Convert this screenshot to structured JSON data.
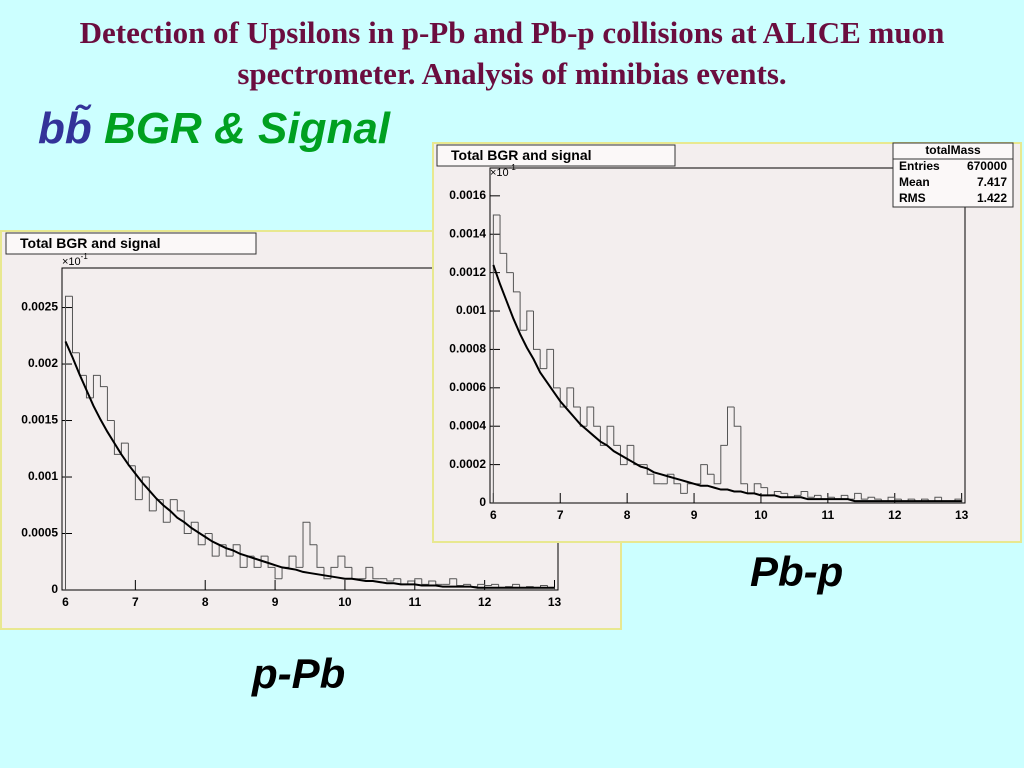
{
  "slide": {
    "title": "Detection of Upsilons in p-Pb and Pb-p collisions at ALICE muon spectrometer. Analysis of minibias events.",
    "heading_symbol": "bb̃",
    "heading_text": "BGR & Signal"
  },
  "chart_data": [
    {
      "type": "histogram",
      "title": "Total BGR and signal",
      "label": "p-Pb",
      "y_multiplier": {
        "base": "×10",
        "exp": "-1"
      },
      "color": "#555555",
      "fit_color": "#000000",
      "xlim": [
        5.95,
        13.05
      ],
      "xticks": [
        6,
        7,
        8,
        9,
        10,
        11,
        12,
        13
      ],
      "ylim": [
        0,
        0.00285
      ],
      "yticks": [
        0,
        0.0005,
        0.001,
        0.0015,
        0.002,
        0.0025
      ],
      "bins": [
        6,
        6.1,
        6.2,
        6.3,
        6.4,
        6.5,
        6.6,
        6.7,
        6.8,
        6.9,
        7,
        7.1,
        7.2,
        7.3,
        7.4,
        7.5,
        7.6,
        7.7,
        7.8,
        7.9,
        8,
        8.1,
        8.2,
        8.3,
        8.4,
        8.5,
        8.6,
        8.7,
        8.8,
        8.9,
        9,
        9.1,
        9.2,
        9.3,
        9.4,
        9.5,
        9.6,
        9.7,
        9.8,
        9.9,
        10,
        10.1,
        10.2,
        10.3,
        10.4,
        10.5,
        10.6,
        10.7,
        10.8,
        10.9,
        11,
        11.1,
        11.2,
        11.3,
        11.4,
        11.5,
        11.6,
        11.7,
        11.8,
        11.9,
        12,
        12.1,
        12.2,
        12.3,
        12.4,
        12.5,
        12.6,
        12.7,
        12.8,
        12.9,
        13
      ],
      "values": [
        0.0026,
        0.0021,
        0.0019,
        0.0017,
        0.0019,
        0.0018,
        0.0015,
        0.0012,
        0.0013,
        0.0011,
        0.0008,
        0.001,
        0.0007,
        0.0008,
        0.0006,
        0.0008,
        0.0007,
        0.0005,
        0.0006,
        0.0004,
        0.0005,
        0.0003,
        0.0004,
        0.0003,
        0.0004,
        0.0002,
        0.0003,
        0.0002,
        0.0003,
        0.0002,
        0.0001,
        0.0002,
        0.0003,
        0.0002,
        0.0006,
        0.0004,
        0.0002,
        0.0001,
        0.0002,
        0.0003,
        0.0002,
        0.0001,
        0.0001,
        0.0002,
        0.0001,
        0.0001,
        8e-05,
        0.0001,
        5e-05,
        8e-05,
        0.0001,
        5e-05,
        8e-05,
        5e-05,
        5e-05,
        0.0001,
        4e-05,
        5e-05,
        3e-05,
        5e-05,
        4e-05,
        5e-05,
        2e-05,
        3e-05,
        5e-05,
        2e-05,
        3e-05,
        2e-05,
        4e-05,
        2e-05
      ],
      "fit_values": [
        0.0022,
        0.00206,
        0.00191,
        0.00177,
        0.00163,
        0.00151,
        0.0014,
        0.0013,
        0.0012,
        0.00111,
        0.00103,
        0.00095,
        0.00088,
        0.00081,
        0.00075,
        0.0007,
        0.00064,
        0.0006,
        0.00055,
        0.00051,
        0.00047,
        0.00043,
        0.0004,
        0.00037,
        0.00035,
        0.00032,
        0.0003,
        0.00028,
        0.00026,
        0.00024,
        0.00022,
        0.0002,
        0.00019,
        0.00018,
        0.00016,
        0.00015,
        0.00014,
        0.00013,
        0.00012,
        0.00011,
        0.0001,
        0.0001,
        9e-05,
        8e-05,
        8e-05,
        7e-05,
        6e-05,
        6e-05,
        5e-05,
        5e-05,
        5e-05,
        4e-05,
        4e-05,
        4e-05,
        3e-05,
        3e-05,
        3e-05,
        3e-05,
        3e-05,
        2e-05,
        2e-05,
        2e-05,
        2e-05,
        2e-05,
        2e-05,
        2e-05,
        2e-05,
        2e-05,
        2e-05,
        2e-05,
        2e-05
      ]
    },
    {
      "type": "histogram",
      "title": "Total BGR and signal",
      "label": "Pb-p",
      "y_multiplier": {
        "base": "×10",
        "exp": "-1"
      },
      "color": "#555555",
      "fit_color": "#000000",
      "stats": {
        "title": "totalMass",
        "rows": [
          [
            "Entries",
            670000
          ],
          [
            "Mean",
            7.417
          ],
          [
            "RMS",
            1.422
          ]
        ]
      },
      "xlim": [
        5.95,
        13.05
      ],
      "xticks": [
        6,
        7,
        8,
        9,
        10,
        11,
        12,
        13
      ],
      "ylim": [
        0,
        0.001745
      ],
      "yticks": [
        0,
        0.0002,
        0.0004,
        0.0006,
        0.0008,
        0.001,
        0.0012,
        0.0014,
        0.0016
      ],
      "bins": [
        6,
        6.1,
        6.2,
        6.3,
        6.4,
        6.5,
        6.6,
        6.7,
        6.8,
        6.9,
        7,
        7.1,
        7.2,
        7.3,
        7.4,
        7.5,
        7.6,
        7.7,
        7.8,
        7.9,
        8,
        8.1,
        8.2,
        8.3,
        8.4,
        8.5,
        8.6,
        8.7,
        8.8,
        8.9,
        9,
        9.1,
        9.2,
        9.3,
        9.4,
        9.5,
        9.6,
        9.7,
        9.8,
        9.9,
        10,
        10.1,
        10.2,
        10.3,
        10.4,
        10.5,
        10.6,
        10.7,
        10.8,
        10.9,
        11,
        11.1,
        11.2,
        11.3,
        11.4,
        11.5,
        11.6,
        11.7,
        11.8,
        11.9,
        12,
        12.1,
        12.2,
        12.3,
        12.4,
        12.5,
        12.6,
        12.7,
        12.8,
        12.9,
        13
      ],
      "values": [
        0.0015,
        0.0013,
        0.0012,
        0.0011,
        0.0009,
        0.001,
        0.0008,
        0.0007,
        0.0008,
        0.0006,
        0.0005,
        0.0006,
        0.0005,
        0.0004,
        0.0005,
        0.0004,
        0.0003,
        0.0004,
        0.0003,
        0.0002,
        0.0003,
        0.0002,
        0.0002,
        0.00015,
        0.0001,
        0.0001,
        0.00015,
        0.0001,
        5e-05,
        0.0001,
        0.0001,
        0.0002,
        0.00015,
        0.0001,
        0.0003,
        0.0005,
        0.0004,
        0.0001,
        5e-05,
        0.0001,
        8e-05,
        4e-05,
        6e-05,
        5e-05,
        3e-05,
        4e-05,
        6e-05,
        3e-05,
        4e-05,
        2e-05,
        3e-05,
        2e-05,
        4e-05,
        2e-05,
        5e-05,
        2e-05,
        3e-05,
        2e-05,
        1e-05,
        3e-05,
        2e-05,
        1e-05,
        2e-05,
        1e-05,
        2e-05,
        1e-05,
        3e-05,
        1e-05,
        1e-05,
        2e-05
      ],
      "fit_values": [
        0.00124,
        0.00114,
        0.00105,
        0.00096,
        0.00088,
        0.00081,
        0.00075,
        0.00068,
        0.00063,
        0.00058,
        0.00053,
        0.00049,
        0.00045,
        0.00041,
        0.00038,
        0.00035,
        0.00032,
        0.0003,
        0.00027,
        0.00025,
        0.00023,
        0.00021,
        0.00019,
        0.00018,
        0.00016,
        0.00015,
        0.00014,
        0.00013,
        0.00012,
        0.00011,
        0.0001,
        9e-05,
        9e-05,
        8e-05,
        7e-05,
        7e-05,
        6e-05,
        6e-05,
        5e-05,
        5e-05,
        4e-05,
        4e-05,
        4e-05,
        3e-05,
        3e-05,
        3e-05,
        3e-05,
        2e-05,
        2e-05,
        2e-05,
        2e-05,
        2e-05,
        2e-05,
        2e-05,
        1e-05,
        1e-05,
        1e-05,
        1e-05,
        1e-05,
        1e-05,
        1e-05,
        1e-05,
        1e-05,
        1e-05,
        1e-05,
        1e-05,
        1e-05,
        1e-05,
        1e-05,
        1e-05,
        1e-05
      ]
    }
  ]
}
